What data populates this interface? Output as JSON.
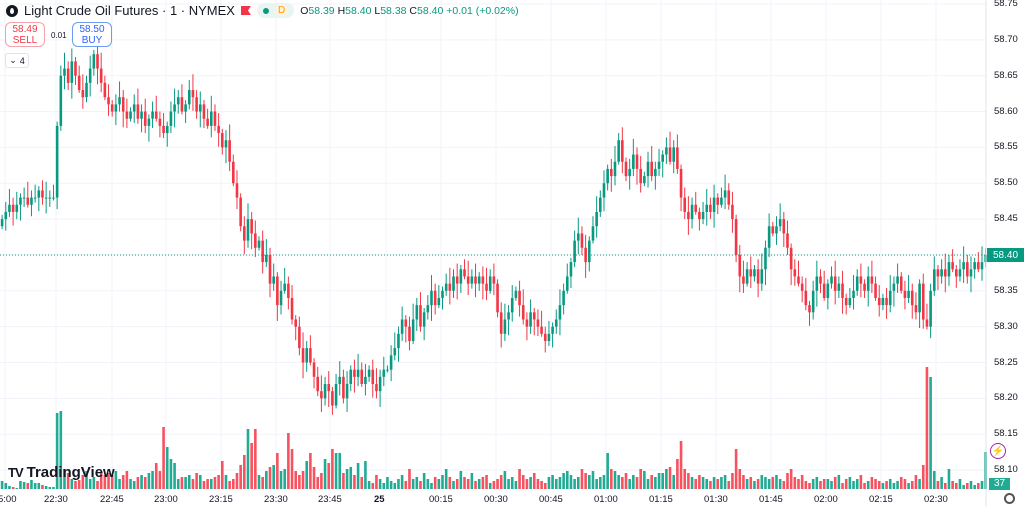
{
  "header": {
    "symbol": "Light Crude Oil Futures · 1 · NYMEX",
    "market_status": "D",
    "o_label": "O",
    "o": "58.39",
    "h_label": "H",
    "h": "58.40",
    "l_label": "L",
    "l": "58.38",
    "c_label": "C",
    "c": "58.40",
    "change": "+0.01 (+0.02%)"
  },
  "trade": {
    "sell_price": "58.49",
    "sell_label": "SELL",
    "spread": "0.01",
    "buy_price": "58.50",
    "buy_label": "BUY"
  },
  "indicators": {
    "count": "4"
  },
  "brand": "TradingView",
  "colors": {
    "up": "#089981",
    "down": "#f23645",
    "vol_up": "#22ab94",
    "vol_down": "#f7525f",
    "grid": "#f0f3fa"
  },
  "chart_data": {
    "type": "candlestick",
    "interval": "1 minute",
    "start_time": "22:15",
    "ylim": [
      58.075,
      58.755
    ],
    "y_ticks": [
      "58.75",
      "58.70",
      "58.65",
      "58.60",
      "58.55",
      "58.50",
      "58.45",
      "58.40",
      "58.35",
      "58.30",
      "58.25",
      "58.20",
      "58.15",
      "58.10"
    ],
    "x_ticks": [
      "5:00",
      "22:30",
      "22:45",
      "23:00",
      "23:15",
      "23:30",
      "23:45",
      "25",
      "00:15",
      "00:30",
      "00:45",
      "01:00",
      "01:15",
      "01:30",
      "01:45",
      "02:00",
      "02:15",
      "02:30"
    ],
    "last_price": "58.40",
    "last_volume": "37",
    "close": [
      58.45,
      58.46,
      58.47,
      58.46,
      58.47,
      58.48,
      58.48,
      58.47,
      58.48,
      58.48,
      58.49,
      58.48,
      58.48,
      58.48,
      58.48,
      58.58,
      58.65,
      58.66,
      58.64,
      58.67,
      58.65,
      58.63,
      58.62,
      58.64,
      58.66,
      58.68,
      58.66,
      58.64,
      58.62,
      58.61,
      58.6,
      58.61,
      58.62,
      58.6,
      58.59,
      58.6,
      58.61,
      58.59,
      58.6,
      58.58,
      58.59,
      58.6,
      58.59,
      58.58,
      58.57,
      58.58,
      58.6,
      58.61,
      58.62,
      58.6,
      58.61,
      58.63,
      58.62,
      58.6,
      58.61,
      58.59,
      58.58,
      58.6,
      58.58,
      58.57,
      58.55,
      58.56,
      58.53,
      58.5,
      58.48,
      58.44,
      58.42,
      58.45,
      58.43,
      58.41,
      58.42,
      58.39,
      58.4,
      58.36,
      58.37,
      58.33,
      58.35,
      58.36,
      58.34,
      58.31,
      58.3,
      58.27,
      58.25,
      58.27,
      58.25,
      58.23,
      58.21,
      58.2,
      58.22,
      58.21,
      58.19,
      58.22,
      58.23,
      58.2,
      58.22,
      58.24,
      58.23,
      58.24,
      58.22,
      58.23,
      58.24,
      58.22,
      58.21,
      58.23,
      58.24,
      58.24,
      58.26,
      58.27,
      58.29,
      58.31,
      58.3,
      58.28,
      58.31,
      58.33,
      58.3,
      58.32,
      58.33,
      58.35,
      58.33,
      58.34,
      58.35,
      58.36,
      58.35,
      58.37,
      58.36,
      58.38,
      58.37,
      58.36,
      58.37,
      58.36,
      58.37,
      58.36,
      58.35,
      58.37,
      58.36,
      58.32,
      58.29,
      58.31,
      58.32,
      58.34,
      58.35,
      58.33,
      58.31,
      58.3,
      58.32,
      58.31,
      58.3,
      58.29,
      58.28,
      58.29,
      58.3,
      58.31,
      58.33,
      58.35,
      58.37,
      58.39,
      58.42,
      58.43,
      58.41,
      58.39,
      58.42,
      58.44,
      58.46,
      58.48,
      58.5,
      58.52,
      58.51,
      58.53,
      58.56,
      58.53,
      58.51,
      58.52,
      58.54,
      58.52,
      58.5,
      58.51,
      58.53,
      58.51,
      58.52,
      58.53,
      58.54,
      58.55,
      58.53,
      58.55,
      58.52,
      58.48,
      58.46,
      58.45,
      58.47,
      58.46,
      58.45,
      58.46,
      58.47,
      58.46,
      58.48,
      58.47,
      58.48,
      58.49,
      58.47,
      58.45,
      58.4,
      58.37,
      58.36,
      58.38,
      58.37,
      58.38,
      58.36,
      58.38,
      58.41,
      58.44,
      58.43,
      58.44,
      58.45,
      58.43,
      58.41,
      58.38,
      58.37,
      58.36,
      58.35,
      58.33,
      58.32,
      58.35,
      58.37,
      58.36,
      58.34,
      58.36,
      58.37,
      58.35,
      58.36,
      58.34,
      58.33,
      58.34,
      58.35,
      58.37,
      58.36,
      58.35,
      58.37,
      58.36,
      58.34,
      58.33,
      58.34,
      58.33,
      58.35,
      58.36,
      58.37,
      58.35,
      58.34,
      58.35,
      58.33,
      58.32,
      58.36,
      58.31,
      58.3,
      58.35,
      58.38,
      58.37,
      58.38,
      58.37,
      58.39,
      58.38,
      58.37,
      58.38,
      58.39,
      58.37,
      58.38,
      58.39,
      58.38,
      58.39,
      58.4
    ],
    "volume": [
      8,
      6,
      3,
      2,
      1,
      8,
      7,
      6,
      9,
      6,
      6,
      4,
      3,
      2,
      2,
      76,
      78,
      20,
      16,
      10,
      8,
      9,
      14,
      18,
      10,
      12,
      8,
      16,
      14,
      16,
      14,
      18,
      10,
      14,
      18,
      10,
      8,
      12,
      14,
      12,
      16,
      18,
      26,
      18,
      62,
      42,
      30,
      26,
      10,
      12,
      12,
      14,
      10,
      16,
      14,
      8,
      10,
      10,
      12,
      14,
      28,
      14,
      8,
      10,
      16,
      24,
      34,
      60,
      46,
      60,
      14,
      12,
      18,
      22,
      24,
      36,
      18,
      20,
      56,
      40,
      18,
      14,
      18,
      28,
      36,
      22,
      12,
      16,
      30,
      26,
      40,
      36,
      36,
      16,
      20,
      22,
      14,
      26,
      12,
      28,
      8,
      6,
      14,
      10,
      6,
      12,
      8,
      6,
      10,
      14,
      8,
      20,
      10,
      12,
      8,
      16,
      10,
      6,
      12,
      10,
      14,
      20,
      12,
      8,
      10,
      18,
      12,
      10,
      16,
      8,
      10,
      12,
      14,
      6,
      8,
      10,
      14,
      18,
      10,
      12,
      8,
      20,
      14,
      10,
      12,
      16,
      10,
      8,
      6,
      12,
      14,
      10,
      12,
      16,
      18,
      14,
      10,
      12,
      20,
      16,
      14,
      18,
      10,
      12,
      14,
      36,
      20,
      18,
      14,
      12,
      16,
      10,
      14,
      12,
      20,
      18,
      10,
      14,
      12,
      16,
      16,
      20,
      22,
      14,
      30,
      48,
      20,
      16,
      12,
      10,
      14,
      12,
      10,
      8,
      12,
      10,
      12,
      14,
      8,
      16,
      40,
      20,
      14,
      10,
      12,
      8,
      10,
      14,
      12,
      10,
      12,
      14,
      10,
      8,
      16,
      20,
      12,
      10,
      14,
      8,
      6,
      10,
      12,
      8,
      10,
      10,
      8,
      12,
      14,
      6,
      10,
      12,
      8,
      10,
      14,
      6,
      8,
      12,
      10,
      8,
      6,
      8,
      10,
      6,
      8,
      12,
      10,
      6,
      8,
      14,
      10,
      24,
      122,
      112,
      18,
      8,
      12,
      6,
      20,
      8,
      6,
      10,
      4,
      6,
      8,
      4,
      6,
      8,
      37
    ]
  }
}
